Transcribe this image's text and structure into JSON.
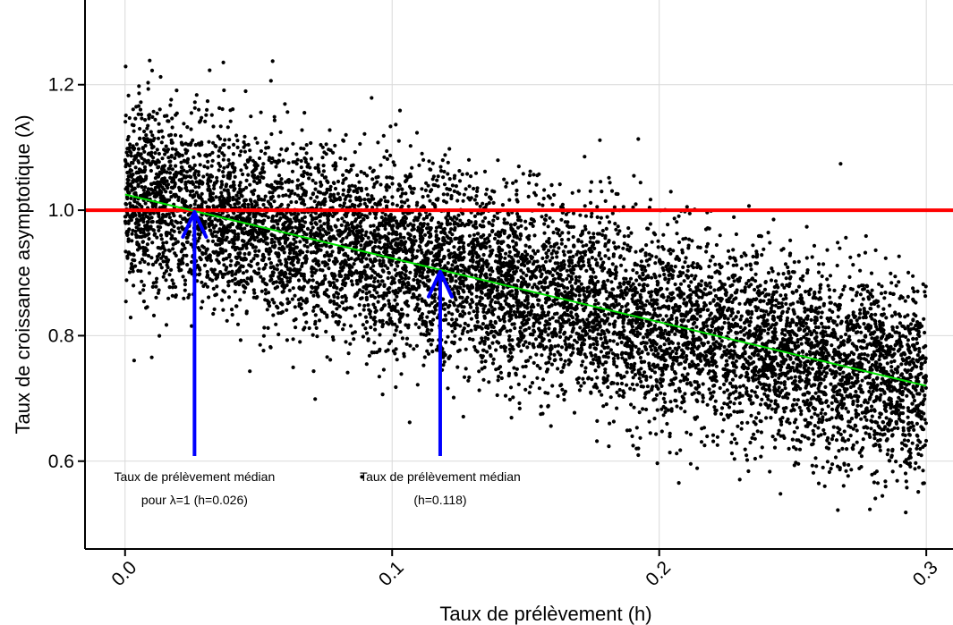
{
  "chart_data": {
    "type": "scatter",
    "title": "",
    "xlabel": "Taux de prélèvement (h)",
    "ylabel": "Taux de croissance asymptotique (λ)",
    "xlim": [
      -0.015,
      0.31
    ],
    "ylim": [
      0.46,
      1.335
    ],
    "x_ticks": [
      0.0,
      0.1,
      0.2,
      0.3
    ],
    "x_tick_labels": [
      "0.0",
      "0.1",
      "0.2",
      "0.3"
    ],
    "y_ticks": [
      0.6,
      0.8,
      1.0,
      1.2
    ],
    "y_tick_labels": [
      "0.6",
      "0.8",
      "1.0",
      "1.2"
    ],
    "grid": true,
    "legend": "none",
    "scatter_cloud": {
      "color": "#000000",
      "x_range": [
        0.0,
        0.3
      ],
      "trend_start": 1.025,
      "trend_end": 0.72,
      "y_spread_sd": 0.075,
      "y_min": 0.485,
      "y_max": 1.305
    },
    "reference_line": {
      "y": 1.0,
      "color": "#ff0000"
    },
    "trend_line": {
      "x": [
        0.0,
        0.3
      ],
      "y": [
        1.025,
        0.72
      ],
      "color": "#00e000"
    },
    "annotations": [
      {
        "arrow_x": 0.026,
        "arrow_y_top": 1.0,
        "lines": [
          "Taux de prélèvement médian",
          "pour λ=1 (h=0.026)"
        ],
        "color": "#0000ff"
      },
      {
        "arrow_x": 0.118,
        "arrow_y_top": 0.905,
        "lines": [
          "Taux de prélèvement médian",
          "(h=0.118)"
        ],
        "color": "#0000ff"
      }
    ]
  }
}
